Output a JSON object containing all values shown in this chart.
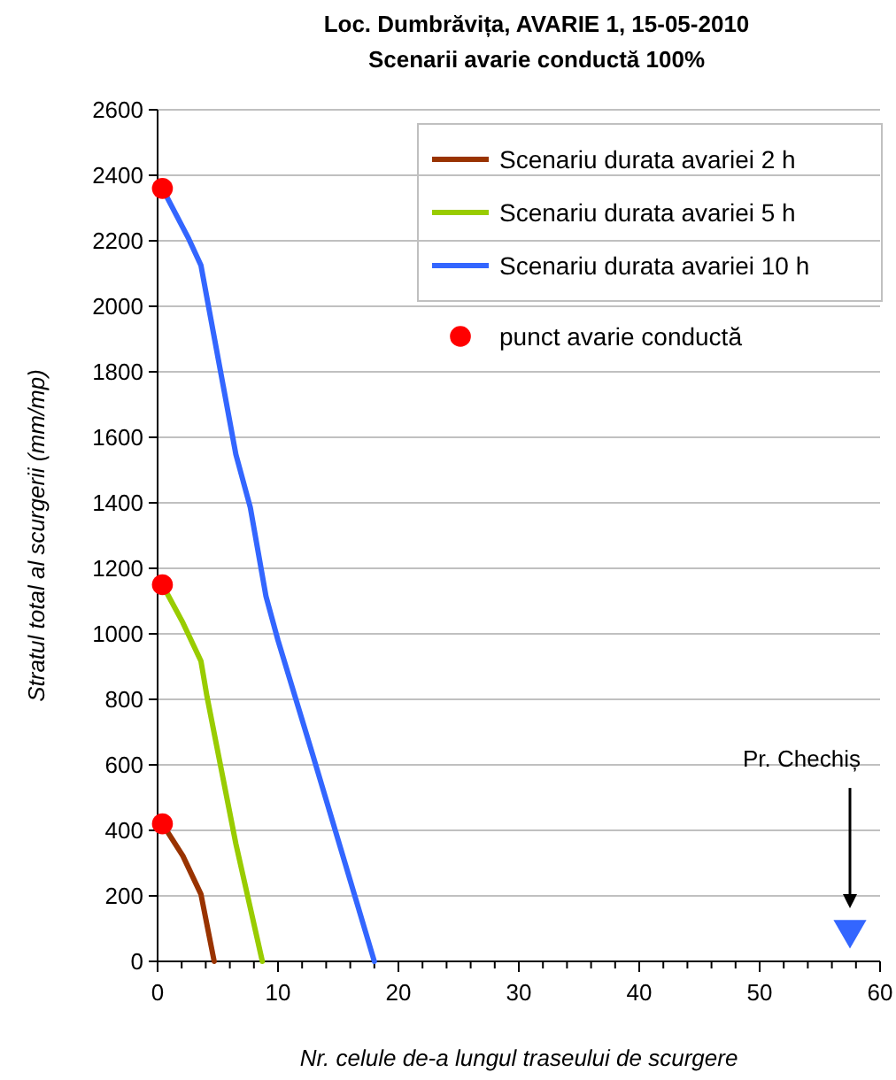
{
  "chart_data": {
    "type": "line",
    "title": "Loc. Dumbrăvița, AVARIE 1, 15-05-2010",
    "subtitle": "Scenarii avarie conductă 100%",
    "xlabel": "Nr. celule de-a lungul traseului de scurgere",
    "ylabel": "Stratul total al scurgerii (mm/mp)",
    "xlim": [
      0,
      60
    ],
    "ylim": [
      0,
      2600
    ],
    "xticks": [
      0,
      {
        "value": 2,
        "label": null
      },
      {
        "value": 4,
        "label": null
      },
      {
        "value": 6,
        "label": null
      },
      {
        "value": 8,
        "label": null
      },
      10,
      {
        "value": 12,
        "label": null
      },
      {
        "value": 14,
        "label": null
      },
      {
        "value": 16,
        "label": null
      },
      {
        "value": 18,
        "label": null
      },
      20,
      {
        "value": 22,
        "label": null
      },
      {
        "value": 24,
        "label": null
      },
      {
        "value": 26,
        "label": null
      },
      {
        "value": 28,
        "label": null
      },
      30,
      {
        "value": 32,
        "label": null
      },
      {
        "value": 34,
        "label": null
      },
      {
        "value": 36,
        "label": null
      },
      {
        "value": 38,
        "label": null
      },
      40,
      {
        "value": 42,
        "label": null
      },
      {
        "value": 44,
        "label": null
      },
      {
        "value": 46,
        "label": null
      },
      {
        "value": 48,
        "label": null
      },
      50,
      {
        "value": 52,
        "label": null
      },
      {
        "value": 54,
        "label": null
      },
      {
        "value": 56,
        "label": null
      },
      {
        "value": 58,
        "label": null
      },
      60
    ],
    "yticks": [
      0,
      200,
      400,
      600,
      800,
      1000,
      1200,
      1400,
      1600,
      1800,
      2000,
      2200,
      2400,
      2600
    ],
    "grid": "y",
    "legend": "top right",
    "series": [
      {
        "name": "Scenariu durata avariei 2 h",
        "color": "#993300",
        "x": [
          0.4,
          2.1,
          3.6,
          4.7
        ],
        "values": [
          420,
          322,
          205,
          0
        ]
      },
      {
        "name": "Scenariu durata avariei 5 h",
        "color": "#99cc00",
        "x": [
          0.4,
          2.1,
          3.6,
          4.1,
          6.5,
          8.7
        ],
        "values": [
          1150,
          1034,
          917,
          809,
          359,
          0
        ]
      },
      {
        "name": "Scenariu durata avariei 10 h",
        "color": "#3366ff",
        "x": [
          0.4,
          2.6,
          3.6,
          4.6,
          6.5,
          7.7,
          9.0,
          10.0,
          12.9,
          18.0
        ],
        "values": [
          2360,
          2205,
          2125,
          1926,
          1548,
          1386,
          1115,
          980,
          629,
          0
        ]
      },
      {
        "name": "punct avarie conductă",
        "type": "scatter",
        "marker": "circle",
        "color": "#ff0000",
        "x": [
          0.4,
          0.4,
          0.4
        ],
        "values": [
          2360,
          1150,
          420
        ]
      },
      {
        "type": "scatter",
        "marker": "triangle",
        "color": "#3366ff",
        "x": [
          57.5
        ],
        "values": [
          97
        ]
      }
    ],
    "annotations": [
      "Pr. Chechiș"
    ]
  }
}
